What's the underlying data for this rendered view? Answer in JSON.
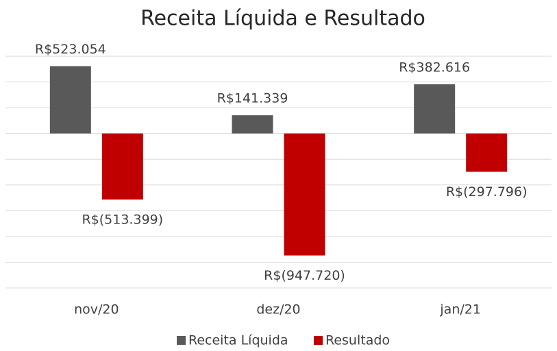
{
  "chart_data": {
    "type": "bar",
    "title": "Receita Líquida e Resultado",
    "categories": [
      "nov/20",
      "dez/20",
      "jan/21"
    ],
    "series": [
      {
        "name": "Receita Líquida",
        "color": "#595959",
        "values": [
          523054,
          141339,
          382616
        ],
        "value_labels": [
          "R$523.054",
          "R$141.339",
          "R$382.616"
        ]
      },
      {
        "name": "Resultado",
        "color": "#c00000",
        "values": [
          -513399,
          -947720,
          -297796
        ],
        "value_labels": [
          "R$(513.399)",
          "R$(947.720)",
          "R$(297.796)"
        ]
      }
    ],
    "ylim": [
      -1200000,
      600000
    ],
    "yticks": [
      -1200000,
      -1000000,
      -800000,
      -600000,
      -400000,
      -200000,
      0,
      200000,
      400000,
      600000
    ],
    "grid": true,
    "legend": "bottom"
  }
}
